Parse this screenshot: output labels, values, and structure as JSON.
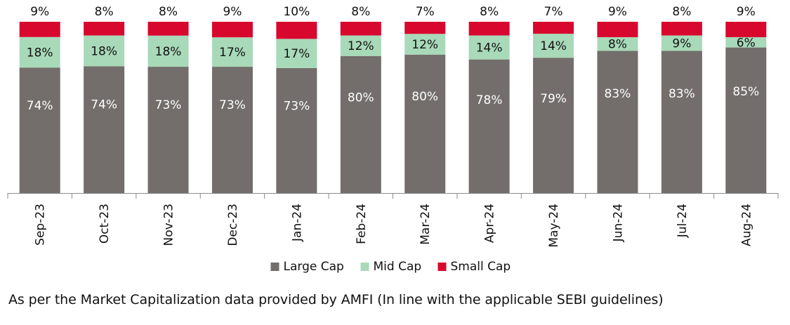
{
  "chart_data": {
    "type": "bar",
    "stacked": true,
    "categories": [
      "Sep-23",
      "Oct-23",
      "Nov-23",
      "Dec-23",
      "Jan-24",
      "Feb-24",
      "Mar-24",
      "Apr-24",
      "May-24",
      "Jun-24",
      "Jul-24",
      "Aug-24"
    ],
    "series": [
      {
        "name": "Large Cap",
        "color": "#736e6b",
        "label_color": "#ffffff",
        "values": [
          74,
          74,
          73,
          73,
          73,
          80,
          80,
          78,
          79,
          83,
          83,
          85
        ]
      },
      {
        "name": "Mid Cap",
        "color": "#a8d9b9",
        "label_color": "#111111",
        "values": [
          18,
          18,
          18,
          17,
          17,
          12,
          12,
          14,
          14,
          8,
          9,
          6
        ]
      },
      {
        "name": "Small Cap",
        "color": "#d8072e",
        "label_color": "#111111",
        "values": [
          9,
          8,
          8,
          9,
          10,
          8,
          7,
          8,
          7,
          9,
          8,
          9
        ]
      }
    ],
    "value_suffix": "%",
    "ylim": [
      0,
      100
    ],
    "grid": false,
    "legend_position": "bottom",
    "xlabel": "",
    "ylabel": ""
  },
  "footnote": "As per the Market Capitalization data provided by AMFI (In line with the applicable SEBI guidelines)"
}
